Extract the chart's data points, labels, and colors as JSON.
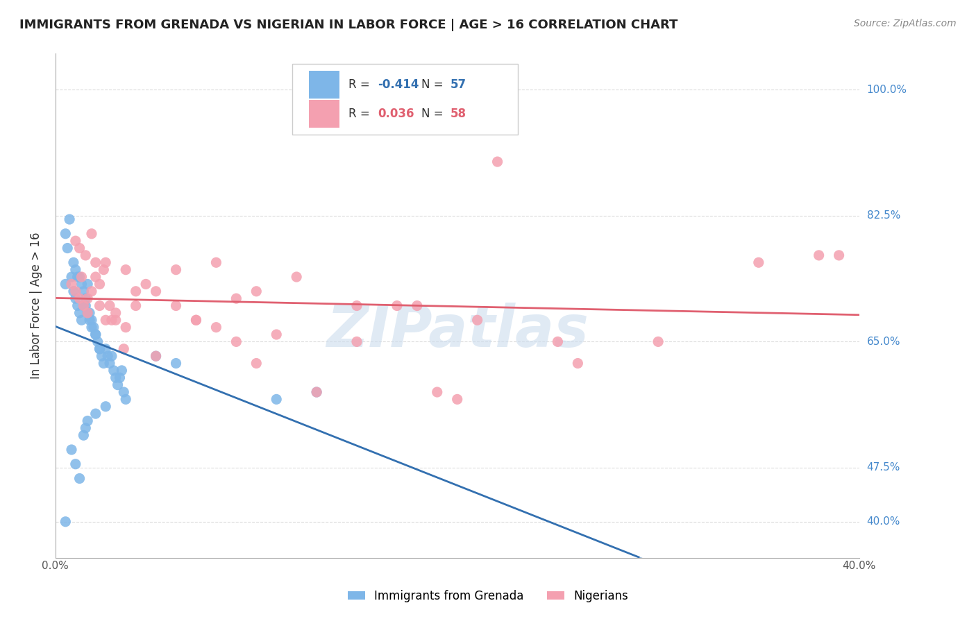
{
  "title": "IMMIGRANTS FROM GRENADA VS NIGERIAN IN LABOR FORCE | AGE > 16 CORRELATION CHART",
  "source": "Source: ZipAtlas.com",
  "ylabel": "In Labor Force | Age > 16",
  "watermark": "ZIPatlas",
  "right_ytick_labels": [
    "100.0%",
    "82.5%",
    "65.0%",
    "47.5%",
    "40.0%"
  ],
  "right_ytick_values": [
    1.0,
    0.825,
    0.65,
    0.475,
    0.4
  ],
  "xlim": [
    0.0,
    0.4
  ],
  "ylim": [
    0.35,
    1.05
  ],
  "grenada_R": -0.414,
  "grenada_N": 57,
  "nigerian_R": 0.036,
  "nigerian_N": 58,
  "grenada_color": "#7EB6E8",
  "nigerian_color": "#F4A0B0",
  "grenada_line_color": "#3370B0",
  "nigerian_line_color": "#E06070",
  "legend_label_grenada": "Immigrants from Grenada",
  "legend_label_nigerian": "Nigerians",
  "background_color": "#FFFFFF",
  "grid_color": "#CCCCCC",
  "title_color": "#222222",
  "right_label_color": "#4488CC",
  "source_color": "#888888",
  "watermark_color": "#CCDDEE",
  "grenada_scatter_x": [
    0.005,
    0.006,
    0.008,
    0.009,
    0.01,
    0.011,
    0.012,
    0.013,
    0.014,
    0.015,
    0.016,
    0.017,
    0.018,
    0.019,
    0.02,
    0.021,
    0.022,
    0.023,
    0.024,
    0.025,
    0.026,
    0.027,
    0.028,
    0.029,
    0.03,
    0.031,
    0.032,
    0.033,
    0.034,
    0.035,
    0.005,
    0.007,
    0.009,
    0.01,
    0.011,
    0.012,
    0.013,
    0.014,
    0.015,
    0.016,
    0.017,
    0.018,
    0.02,
    0.022,
    0.05,
    0.06,
    0.01,
    0.012,
    0.008,
    0.014,
    0.015,
    0.016,
    0.02,
    0.025,
    0.11,
    0.13,
    0.005
  ],
  "grenada_scatter_y": [
    0.73,
    0.78,
    0.74,
    0.72,
    0.71,
    0.7,
    0.69,
    0.68,
    0.72,
    0.71,
    0.73,
    0.69,
    0.68,
    0.67,
    0.66,
    0.65,
    0.64,
    0.63,
    0.62,
    0.64,
    0.63,
    0.62,
    0.63,
    0.61,
    0.6,
    0.59,
    0.6,
    0.61,
    0.58,
    0.57,
    0.8,
    0.82,
    0.76,
    0.75,
    0.74,
    0.74,
    0.73,
    0.7,
    0.7,
    0.69,
    0.68,
    0.67,
    0.66,
    0.64,
    0.63,
    0.62,
    0.48,
    0.46,
    0.5,
    0.52,
    0.53,
    0.54,
    0.55,
    0.56,
    0.57,
    0.58,
    0.4
  ],
  "nigerian_scatter_x": [
    0.008,
    0.01,
    0.012,
    0.014,
    0.016,
    0.018,
    0.02,
    0.022,
    0.024,
    0.025,
    0.027,
    0.03,
    0.035,
    0.04,
    0.045,
    0.05,
    0.06,
    0.07,
    0.08,
    0.09,
    0.1,
    0.12,
    0.15,
    0.18,
    0.21,
    0.25,
    0.3,
    0.35,
    0.01,
    0.012,
    0.015,
    0.018,
    0.02,
    0.025,
    0.03,
    0.035,
    0.04,
    0.05,
    0.06,
    0.07,
    0.08,
    0.09,
    0.1,
    0.11,
    0.13,
    0.15,
    0.17,
    0.19,
    0.22,
    0.26,
    0.013,
    0.016,
    0.022,
    0.028,
    0.034,
    0.2,
    0.38,
    0.39
  ],
  "nigerian_scatter_y": [
    0.73,
    0.72,
    0.71,
    0.7,
    0.69,
    0.72,
    0.74,
    0.73,
    0.75,
    0.76,
    0.7,
    0.68,
    0.75,
    0.7,
    0.73,
    0.63,
    0.75,
    0.68,
    0.76,
    0.71,
    0.72,
    0.74,
    0.7,
    0.7,
    0.68,
    0.65,
    0.65,
    0.76,
    0.79,
    0.78,
    0.77,
    0.8,
    0.76,
    0.68,
    0.69,
    0.67,
    0.72,
    0.72,
    0.7,
    0.68,
    0.67,
    0.65,
    0.62,
    0.66,
    0.58,
    0.65,
    0.7,
    0.58,
    0.9,
    0.62,
    0.74,
    0.71,
    0.7,
    0.68,
    0.64,
    0.57,
    0.77,
    0.77
  ]
}
